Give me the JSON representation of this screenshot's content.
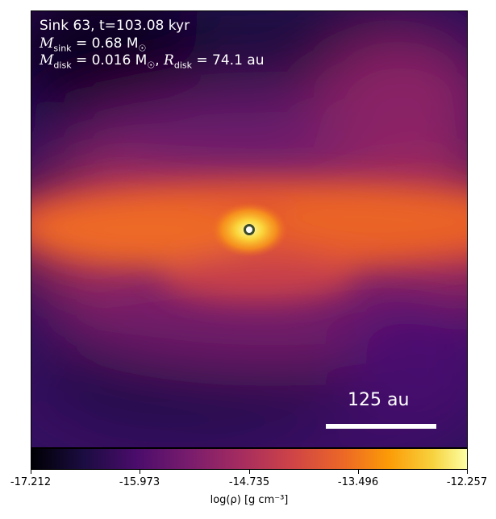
{
  "annotation": {
    "line1": "Sink 63, t=103.08 kyr",
    "line2_label": "M",
    "line2_sub": "sink",
    "line2_value": " = 0.68 M",
    "line2_sun": "☉",
    "line3_label": "M",
    "line3_sub": "disk",
    "line3_value": " = 0.016 M",
    "line3_sun": "☉",
    "line3_sep": ", ",
    "line3_rlabel": "R",
    "line3_rsub": "disk",
    "line3_rvalue": " = 74.1 au"
  },
  "scale_bar": {
    "label": "125 au"
  },
  "colorbar": {
    "ticks": [
      "-17.212",
      "-15.973",
      "-14.735",
      "-13.496",
      "-12.257"
    ],
    "label": "log(ρ) [g cm⁻³]",
    "colormap": "inferno"
  }
}
